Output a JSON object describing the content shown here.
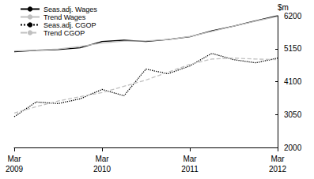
{
  "chart_data": {
    "type": "line",
    "y_label": "$m",
    "categories": [
      "Mar 2009",
      null,
      null,
      null,
      "Mar 2010",
      null,
      null,
      null,
      "Mar 2011",
      null,
      null,
      null,
      "Mar 2012"
    ],
    "series": [
      {
        "name": "Seas.adj. Wages",
        "color": "#000000",
        "line_style": "solid",
        "values": [
          5050,
          5100,
          5120,
          5180,
          5380,
          5420,
          5380,
          5440,
          5530,
          5720,
          5870,
          6040,
          6200
        ]
      },
      {
        "name": "Trend Wages",
        "color": "#c0c0c0",
        "line_style": "solid",
        "values": [
          5080,
          5100,
          5140,
          5220,
          5330,
          5390,
          5400,
          5440,
          5540,
          5700,
          5870,
          6030,
          6180
        ]
      },
      {
        "name": "Seas.adj. CGOP",
        "color": "#000000",
        "line_style": "dotted",
        "values": [
          2980,
          3450,
          3400,
          3550,
          3850,
          3650,
          4500,
          4350,
          4600,
          5000,
          4800,
          4700,
          4850
        ]
      },
      {
        "name": "Trend CGOP",
        "color": "#c0c0c0",
        "line_style": "dashed",
        "values": [
          3100,
          3300,
          3480,
          3620,
          3750,
          3950,
          4150,
          4400,
          4650,
          4820,
          4850,
          4820,
          4800
        ]
      }
    ],
    "ylim": [
      2000,
      6200
    ],
    "yticks": [
      2000,
      3050,
      4100,
      5150,
      6200
    ],
    "grid": false,
    "legend": "top-left"
  }
}
